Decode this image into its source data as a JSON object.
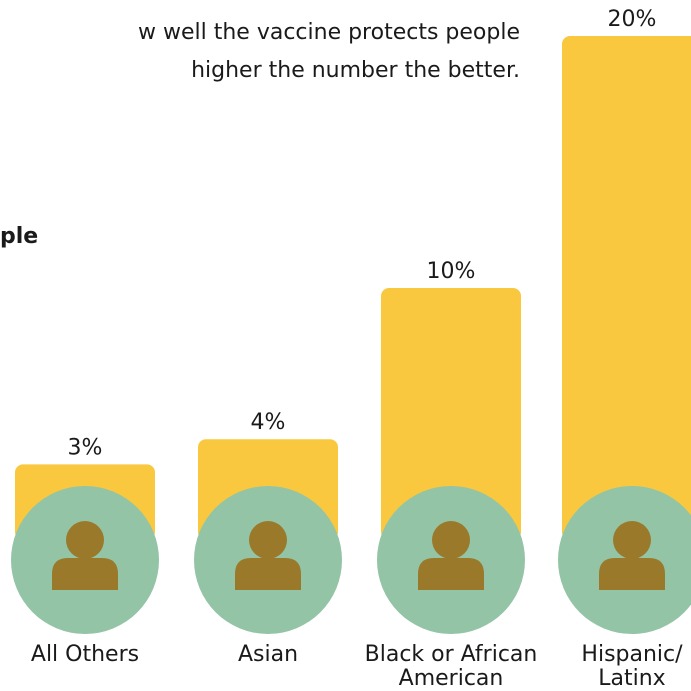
{
  "headline": {
    "line1": "w well the vaccine protects people",
    "line2": "higher the number the better."
  },
  "subhead": "ple",
  "colors": {
    "bar": "#f9c83e",
    "circle": "#93c4a6",
    "person": "#9a7a2a"
  },
  "chart_data": {
    "type": "bar",
    "title": "",
    "categories": [
      "All Others",
      "Asian",
      "Black or African American",
      "Hispanic/ Latinx"
    ],
    "category_lines": [
      [
        "All Others"
      ],
      [
        "Asian"
      ],
      [
        "Black or African",
        "American"
      ],
      [
        "Hispanic/",
        "Latinx"
      ]
    ],
    "values": [
      3,
      4,
      10,
      20
    ],
    "value_labels": [
      "3%",
      "4%",
      "10%",
      "20%"
    ],
    "unit": "%",
    "ylim": [
      0,
      20
    ],
    "grid": false,
    "legend": "none"
  }
}
